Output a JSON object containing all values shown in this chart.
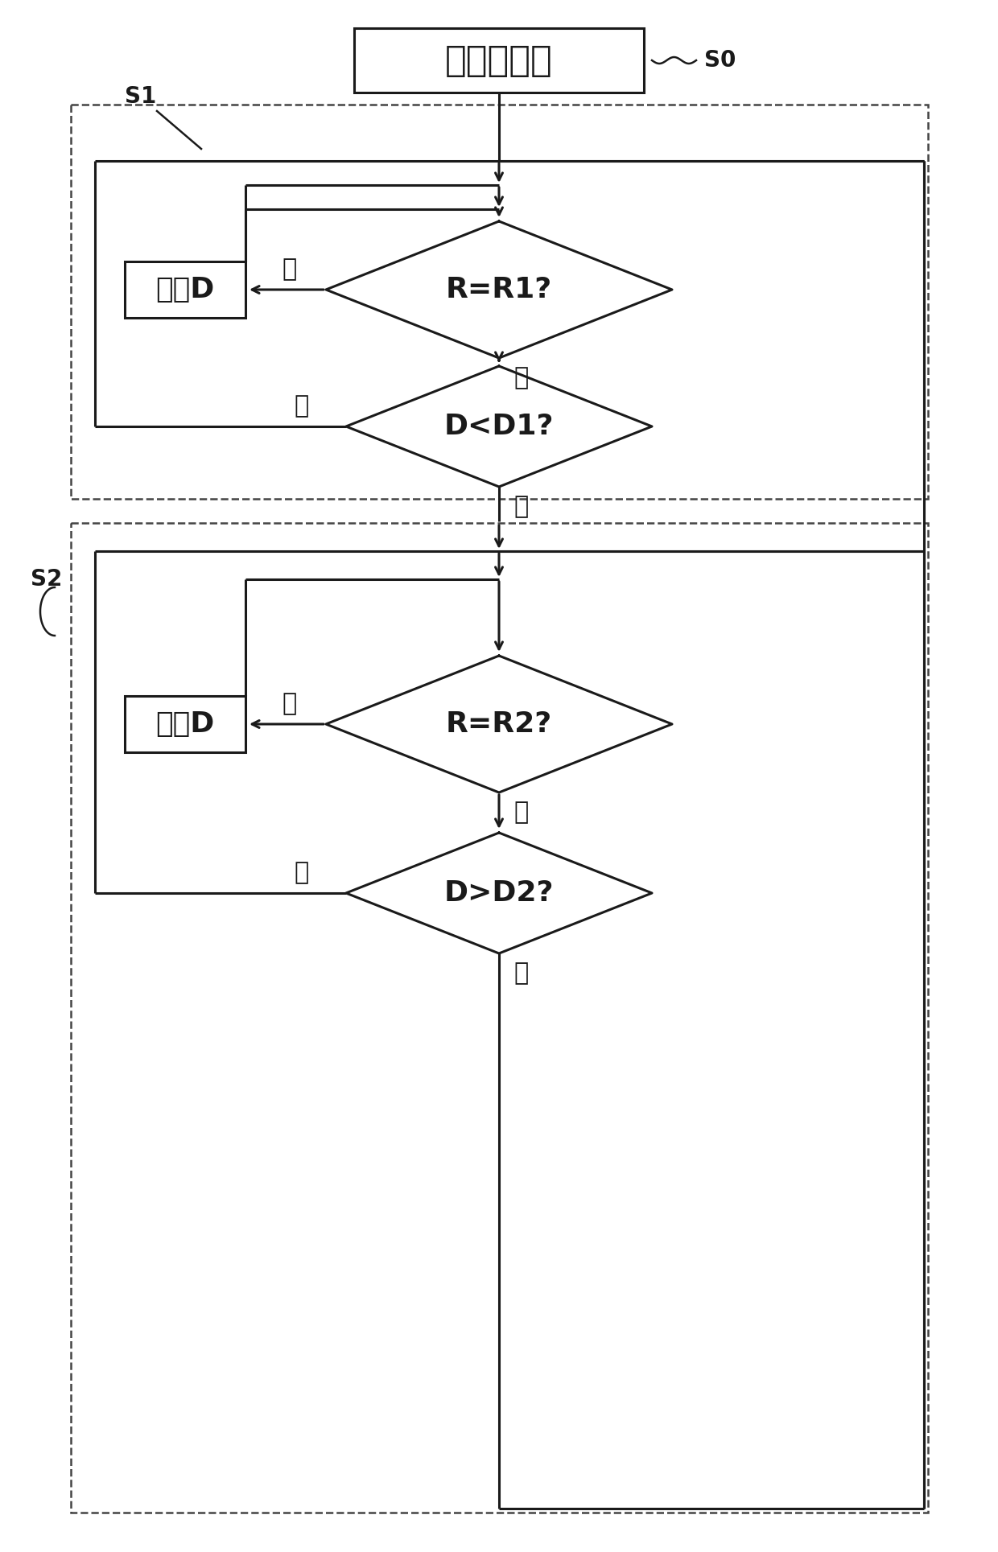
{
  "fig_width": 12.4,
  "fig_height": 19.29,
  "bg_color": "#ffffff",
  "line_color": "#1a1a1a",
  "title_text": "初始化步骤",
  "label_S0": "S0",
  "label_S1": "S1",
  "label_S2": "S2",
  "text_R1": "R=R1?",
  "text_D1": "D<D1?",
  "text_R2": "R=R2?",
  "text_D2": "D>D2?",
  "text_adj": "调整D",
  "text_yes": "是",
  "text_no": "否"
}
